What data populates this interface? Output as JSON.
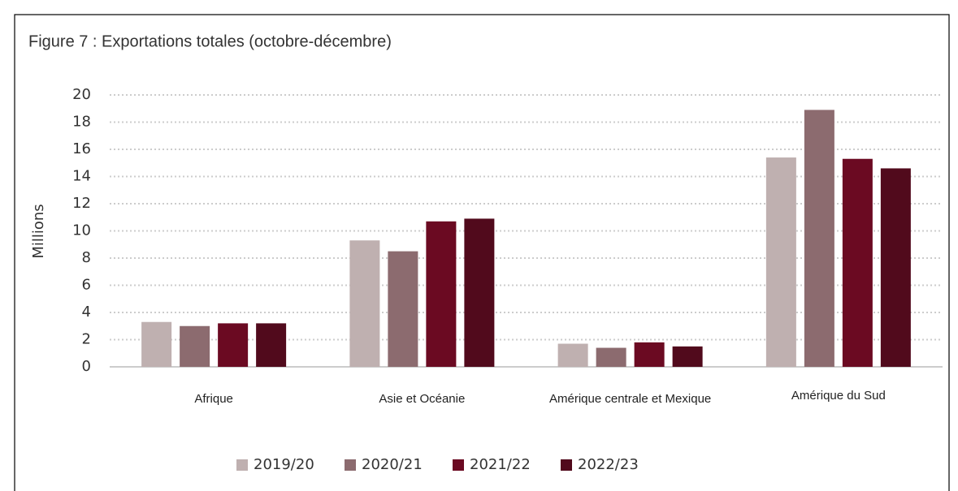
{
  "chart_data": {
    "type": "bar",
    "title": "Figure 7 : Exportations totales (octobre-décembre)",
    "y_label": "Millions",
    "categories": [
      "Afrique",
      "Asie et Océanie",
      "Amérique centrale et Mexique",
      "Amérique du Sud"
    ],
    "series": [
      {
        "name": "2019/20",
        "color": "#bfb0b0",
        "values": [
          3.3,
          9.3,
          1.7,
          15.4
        ]
      },
      {
        "name": "2020/21",
        "color": "#8c6b6f",
        "values": [
          3.0,
          8.5,
          1.4,
          18.9
        ]
      },
      {
        "name": "2021/22",
        "color": "#6b0a22",
        "values": [
          3.2,
          10.7,
          1.8,
          15.3
        ]
      },
      {
        "name": "2022/23",
        "color": "#510a1c",
        "values": [
          3.2,
          10.9,
          1.5,
          14.6
        ]
      }
    ],
    "ylim": [
      0,
      20
    ],
    "yticks": [
      0,
      2,
      4,
      6,
      8,
      10,
      12,
      14,
      16,
      18,
      20
    ],
    "grid": true,
    "legend": "bottom"
  }
}
